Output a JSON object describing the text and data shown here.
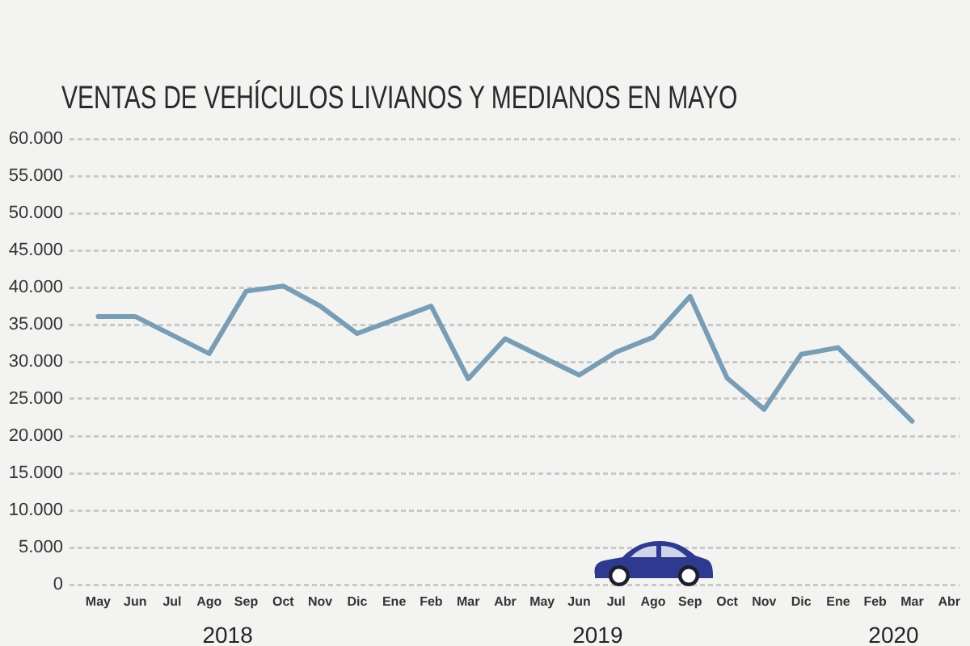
{
  "chart_data": {
    "type": "line",
    "title": "VENTAS DE VEHÍCULOS LIVIANOS Y MEDIANOS EN MAYO",
    "x": [
      "2018-05",
      "2018-06",
      "2018-08",
      "2018-09",
      "2018-10",
      "2018-11",
      "2018-12",
      "2019-02",
      "2019-03",
      "2019-04",
      "2019-06",
      "2019-07",
      "2019-08",
      "2019-09",
      "2019-10",
      "2019-11",
      "2019-12",
      "2020-01",
      "2020-03"
    ],
    "values": [
      36100,
      36100,
      31100,
      39500,
      40200,
      37500,
      33800,
      37500,
      27700,
      33100,
      28200,
      31300,
      33300,
      38800,
      27800,
      23600,
      31000,
      31900,
      22000
    ],
    "color": "#7a9db6",
    "xlim": [
      "2018-04-08",
      "2020-04-10"
    ],
    "xticks": [
      {
        "value": "2018-05",
        "label": "May"
      },
      {
        "value": "2018-06",
        "label": "Jun"
      },
      {
        "value": "2018-07",
        "label": "Jul"
      },
      {
        "value": "2018-08",
        "label": "Ago"
      },
      {
        "value": "2018-09",
        "label": "Sep"
      },
      {
        "value": "2018-10",
        "label": "Oct"
      },
      {
        "value": "2018-11",
        "label": "Nov"
      },
      {
        "value": "2018-12",
        "label": "Dic"
      },
      {
        "value": "2019-01",
        "label": "Ene"
      },
      {
        "value": "2019-02",
        "label": "Feb"
      },
      {
        "value": "2019-03",
        "label": "Mar"
      },
      {
        "value": "2019-04",
        "label": "Abr"
      },
      {
        "value": "2019-05",
        "label": "May"
      },
      {
        "value": "2019-06",
        "label": "Jun"
      },
      {
        "value": "2019-07",
        "label": "Jul"
      },
      {
        "value": "2019-08",
        "label": "Ago"
      },
      {
        "value": "2019-09",
        "label": "Sep"
      },
      {
        "value": "2019-10",
        "label": "Oct"
      },
      {
        "value": "2019-11",
        "label": "Nov"
      },
      {
        "value": "2019-12",
        "label": "Dic"
      },
      {
        "value": "2020-01",
        "label": "Ene"
      },
      {
        "value": "2020-02",
        "label": "Feb"
      },
      {
        "value": "2020-03",
        "label": "Mar"
      },
      {
        "value": "2020-04",
        "label": "Abr"
      }
    ],
    "ylim": [
      0,
      60000
    ],
    "yticks": [
      0,
      {
        "value": 5000,
        "label": "5.000"
      },
      {
        "value": 10000,
        "label": "10.000"
      },
      {
        "value": 15000,
        "label": "15.000"
      },
      {
        "value": 20000,
        "label": "20.000"
      },
      {
        "value": 25000,
        "label": "25.000"
      },
      {
        "value": 30000,
        "label": "30.000"
      },
      {
        "value": 35000,
        "label": "35.000"
      },
      {
        "value": 40000,
        "label": "40.000"
      },
      {
        "value": 45000,
        "label": "45.000"
      },
      {
        "value": 50000,
        "label": "50.000"
      },
      {
        "value": 55000,
        "label": "55.000"
      },
      {
        "value": 60000,
        "label": "60.000"
      }
    ],
    "grid": "y",
    "annotations": [
      "2018",
      "2019",
      "2020"
    ]
  }
}
